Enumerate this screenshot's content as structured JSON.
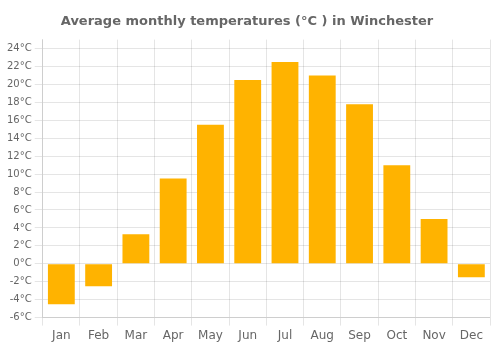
{
  "chart_data": {
    "type": "bar",
    "title": "Average monthly temperatures (°C ) in Winchester",
    "categories": [
      "Jan",
      "Feb",
      "Mar",
      "Apr",
      "May",
      "Jun",
      "Jul",
      "Aug",
      "Sep",
      "Oct",
      "Nov",
      "Dec"
    ],
    "values": [
      -4.5,
      -2.5,
      3.3,
      9.5,
      15.5,
      20.5,
      22.5,
      21.0,
      17.8,
      11.0,
      5.0,
      -1.5
    ],
    "color": "#FFB300",
    "ylim": [
      -6,
      25
    ],
    "yticks": [
      {
        "value": -6,
        "label": "-6°C"
      },
      {
        "value": -4,
        "label": "-4°C"
      },
      {
        "value": -2,
        "label": "-2°C"
      },
      {
        "value": 0,
        "label": "0°C"
      },
      {
        "value": 2,
        "label": "2°C"
      },
      {
        "value": 4,
        "label": "4°C"
      },
      {
        "value": 6,
        "label": "6°C"
      },
      {
        "value": 8,
        "label": "8°C"
      },
      {
        "value": 10,
        "label": "10°C"
      },
      {
        "value": 12,
        "label": "12°C"
      },
      {
        "value": 14,
        "label": "14°C"
      },
      {
        "value": 16,
        "label": "16°C"
      },
      {
        "value": 18,
        "label": "18°C"
      },
      {
        "value": 20,
        "label": "20°C"
      },
      {
        "value": 22,
        "label": "22°C"
      },
      {
        "value": 24,
        "label": "24°C"
      }
    ],
    "grid": true
  }
}
